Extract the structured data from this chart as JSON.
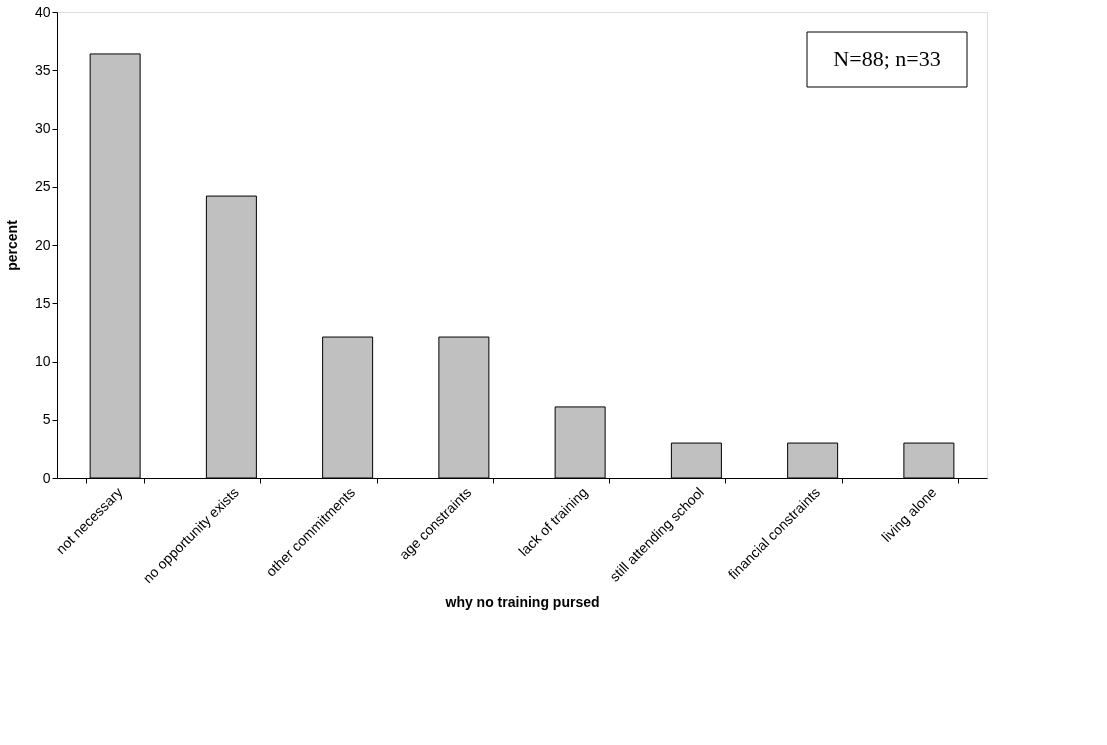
{
  "chart_data": {
    "type": "bar",
    "xlabel": "why no training pursed",
    "ylabel": "percent",
    "categories": [
      "not necessary",
      "no opportunity exists",
      "other commitments",
      "age constraints",
      "lack of training",
      "still attending school",
      "financial constraints",
      "living alone"
    ],
    "values": [
      36.4,
      24.2,
      12.1,
      12.1,
      6.1,
      3.0,
      3.0,
      3.0
    ],
    "color": "#c0c0c0",
    "ylim": [
      0,
      40
    ],
    "yticks": [
      0,
      5,
      10,
      15,
      20,
      25,
      30,
      35,
      40
    ],
    "grid": false,
    "annotations": [
      "N=88; n=33"
    ]
  }
}
